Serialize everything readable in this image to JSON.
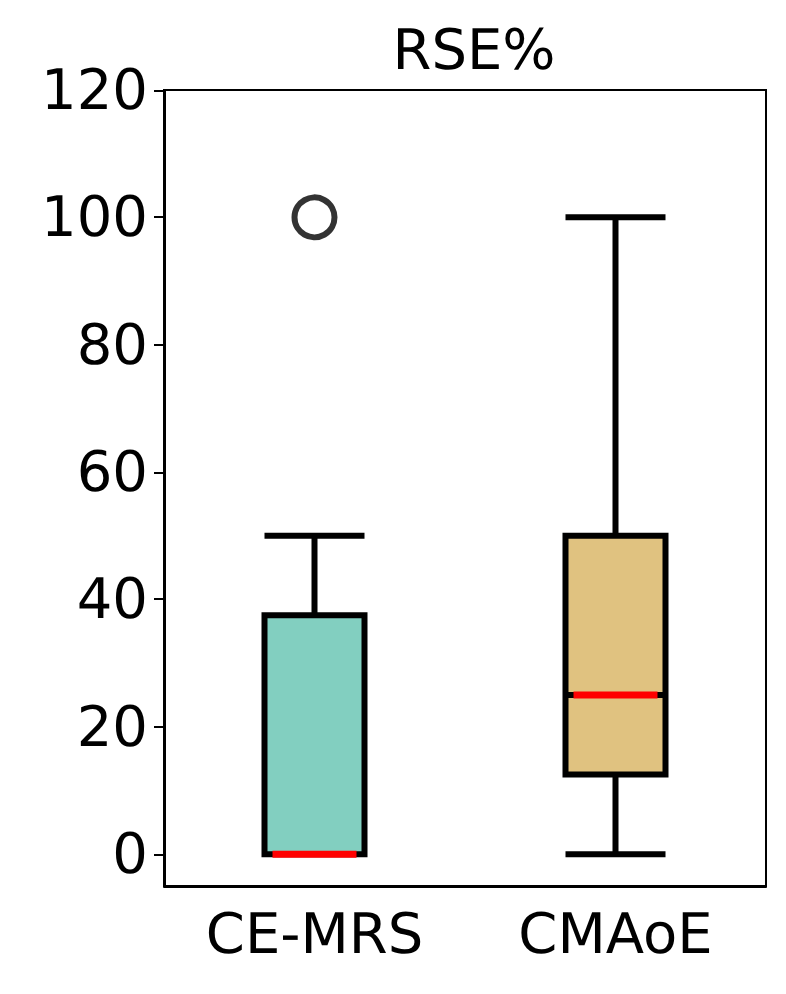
{
  "chart_data": {
    "type": "box",
    "title": "RSE%",
    "categories": [
      "CE-MRS",
      "CMAoE"
    ],
    "boxes": [
      {
        "low": 0,
        "q1": 0,
        "median": 0,
        "q3": 37.5,
        "high": 50,
        "outliers": [
          100
        ]
      },
      {
        "low": 0,
        "q1": 12.5,
        "median": 25,
        "q3": 50,
        "high": 100
      }
    ],
    "colors": [
      "#82cfc0",
      "#e0c280"
    ],
    "ylim": [
      -5,
      120
    ],
    "yticks": [
      0,
      20,
      40,
      60,
      80,
      100,
      120
    ],
    "grid": false
  }
}
